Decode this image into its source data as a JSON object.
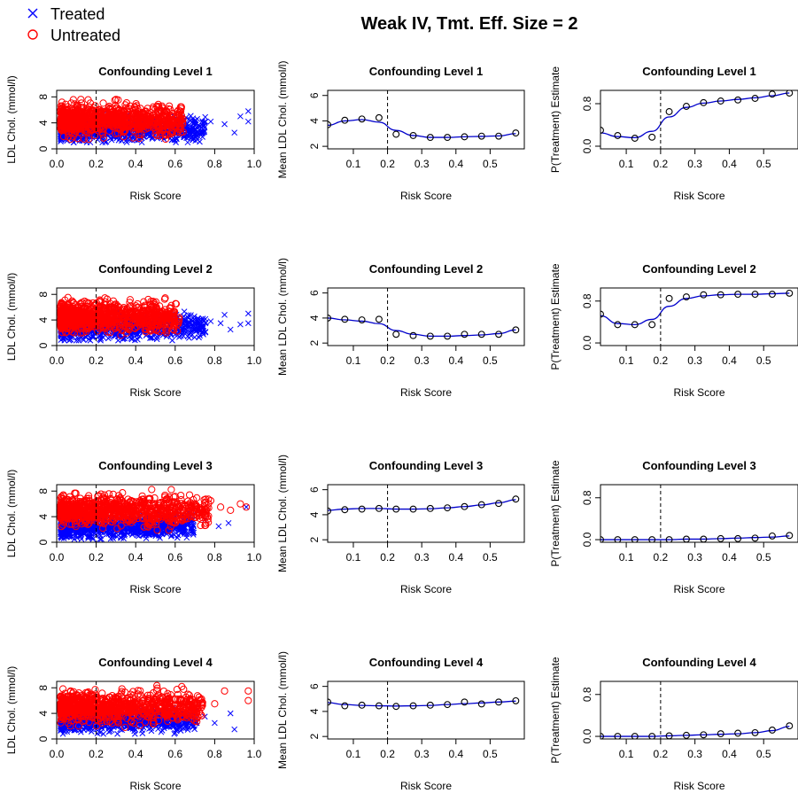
{
  "title": "Weak IV, Tmt. Eff. Size = 2",
  "legend": {
    "placement": "top-left",
    "items": [
      {
        "label": "Treated",
        "marker": "x",
        "color": "#0000ff"
      },
      {
        "label": "Untreated",
        "marker": "o",
        "color": "#ff0000"
      }
    ]
  },
  "colors": {
    "treated": "#0000ff",
    "untreated": "#ff0000",
    "curve": "#0000cc",
    "points": "#000000",
    "threshold": "#000000"
  },
  "chart_data": [
    {
      "type": "scatter",
      "row": 1,
      "col": 1,
      "title": "Confounding  Level 1",
      "xlabel": "Risk Score",
      "ylabel": "LDL Chol. (mmol/l)",
      "xlim": [
        0,
        1.0
      ],
      "ylim": [
        0,
        9
      ],
      "xticks": [
        "0.0",
        "0.2",
        "0.4",
        "0.6",
        "0.8",
        "1.0"
      ],
      "yticks": [
        "0",
        "4",
        "8"
      ],
      "threshold_x": 0.2,
      "treated_cluster": {
        "xmax": 0.98,
        "ymin": 1.0,
        "ymax": 6.5,
        "center": 3.0
      },
      "untreated_cluster": {
        "xmax": 0.62,
        "ymin": 1.5,
        "ymax": 8.5,
        "center": 4.5
      },
      "treated_outliers": [
        [
          0.78,
          4.2
        ],
        [
          0.85,
          3.8
        ],
        [
          0.9,
          2.5
        ],
        [
          0.93,
          5.0
        ],
        [
          0.97,
          5.8
        ],
        [
          0.97,
          4.2
        ]
      ],
      "untreated_outliers": []
    },
    {
      "type": "line",
      "row": 1,
      "col": 2,
      "title": "Confounding  Level 1",
      "xlabel": "Risk Score",
      "ylabel": "Mean LDL Chol. (mmol/l)",
      "xlim": [
        0.025,
        0.6
      ],
      "ylim": [
        1.8,
        6.4
      ],
      "xticks": [
        "0.1",
        "0.2",
        "0.3",
        "0.4",
        "0.5"
      ],
      "yticks": [
        "2",
        "4",
        "6"
      ],
      "threshold_x": 0.2,
      "points": {
        "x": [
          0.025,
          0.075,
          0.125,
          0.175,
          0.225,
          0.275,
          0.325,
          0.375,
          0.425,
          0.475,
          0.525,
          0.575
        ],
        "y": [
          3.7,
          4.05,
          4.15,
          4.25,
          2.95,
          2.85,
          2.7,
          2.7,
          2.75,
          2.8,
          2.8,
          3.05
        ]
      },
      "curve": {
        "x": [
          0.025,
          0.075,
          0.125,
          0.175,
          0.225,
          0.275,
          0.325,
          0.375,
          0.425,
          0.475,
          0.525,
          0.575
        ],
        "y": [
          3.65,
          4.0,
          4.1,
          3.9,
          3.25,
          2.85,
          2.7,
          2.7,
          2.75,
          2.78,
          2.82,
          3.0
        ]
      }
    },
    {
      "type": "line",
      "row": 1,
      "col": 3,
      "title": "Confounding  Level 1",
      "xlabel": "Risk Score",
      "ylabel": "P(Treatment) Estimate",
      "xlim": [
        0.025,
        0.6
      ],
      "ylim": [
        -0.05,
        1.05
      ],
      "xticks": [
        "0.1",
        "0.2",
        "0.3",
        "0.4",
        "0.5"
      ],
      "yticks": [
        "0.0",
        "0.8"
      ],
      "threshold_x": 0.2,
      "points": {
        "x": [
          0.025,
          0.075,
          0.125,
          0.175,
          0.225,
          0.275,
          0.325,
          0.375,
          0.425,
          0.475,
          0.525,
          0.575
        ],
        "y": [
          0.3,
          0.2,
          0.15,
          0.17,
          0.65,
          0.75,
          0.82,
          0.85,
          0.87,
          0.9,
          0.98,
          1.0
        ]
      },
      "curve": {
        "x": [
          0.025,
          0.075,
          0.125,
          0.175,
          0.225,
          0.275,
          0.325,
          0.375,
          0.425,
          0.475,
          0.525,
          0.575
        ],
        "y": [
          0.25,
          0.18,
          0.16,
          0.28,
          0.55,
          0.73,
          0.81,
          0.85,
          0.88,
          0.91,
          0.95,
          1.0
        ]
      }
    },
    {
      "type": "scatter",
      "row": 2,
      "col": 1,
      "title": "Confounding  Level 2",
      "xlabel": "Risk Score",
      "ylabel": "LDL Chol. (mmol/l)",
      "xlim": [
        0,
        1.0
      ],
      "ylim": [
        0,
        9
      ],
      "xticks": [
        "0.0",
        "0.2",
        "0.4",
        "0.6",
        "0.8",
        "1.0"
      ],
      "yticks": [
        "0",
        "4",
        "8"
      ],
      "threshold_x": 0.2,
      "treated_cluster": {
        "xmax": 0.98,
        "ymin": 0.8,
        "ymax": 7.0,
        "center": 3.0
      },
      "untreated_cluster": {
        "xmax": 0.6,
        "ymin": 1.5,
        "ymax": 8.5,
        "center": 4.5
      },
      "treated_outliers": [
        [
          0.78,
          3.8
        ],
        [
          0.83,
          3.5
        ],
        [
          0.85,
          4.8
        ],
        [
          0.88,
          2.5
        ],
        [
          0.93,
          3.3
        ],
        [
          0.97,
          5.0
        ],
        [
          0.97,
          3.5
        ]
      ],
      "untreated_outliers": []
    },
    {
      "type": "line",
      "row": 2,
      "col": 2,
      "title": "Confounding  Level 2",
      "xlabel": "Risk Score",
      "ylabel": "Mean LDL Chol. (mmol/l)",
      "xlim": [
        0.025,
        0.6
      ],
      "ylim": [
        1.8,
        6.4
      ],
      "xticks": [
        "0.1",
        "0.2",
        "0.3",
        "0.4",
        "0.5"
      ],
      "yticks": [
        "2",
        "4",
        "6"
      ],
      "threshold_x": 0.2,
      "points": {
        "x": [
          0.025,
          0.075,
          0.125,
          0.175,
          0.225,
          0.275,
          0.325,
          0.375,
          0.425,
          0.475,
          0.525,
          0.575
        ],
        "y": [
          4.0,
          3.9,
          3.85,
          3.9,
          2.7,
          2.6,
          2.55,
          2.55,
          2.7,
          2.7,
          2.7,
          3.05
        ]
      },
      "curve": {
        "x": [
          0.025,
          0.075,
          0.125,
          0.175,
          0.225,
          0.275,
          0.325,
          0.375,
          0.425,
          0.475,
          0.525,
          0.575
        ],
        "y": [
          4.0,
          3.85,
          3.75,
          3.55,
          3.0,
          2.7,
          2.55,
          2.55,
          2.6,
          2.65,
          2.75,
          3.05
        ]
      }
    },
    {
      "type": "line",
      "row": 2,
      "col": 3,
      "title": "Confounding  Level 2",
      "xlabel": "Risk Score",
      "ylabel": "P(Treatment) Estimate",
      "xlim": [
        0.025,
        0.6
      ],
      "ylim": [
        -0.05,
        1.05
      ],
      "xticks": [
        "0.1",
        "0.2",
        "0.3",
        "0.4",
        "0.5"
      ],
      "yticks": [
        "0.0",
        "0.8"
      ],
      "threshold_x": 0.2,
      "points": {
        "x": [
          0.025,
          0.075,
          0.125,
          0.175,
          0.225,
          0.275,
          0.325,
          0.375,
          0.425,
          0.475,
          0.525,
          0.575
        ],
        "y": [
          0.55,
          0.35,
          0.35,
          0.35,
          0.85,
          0.88,
          0.92,
          0.92,
          0.93,
          0.93,
          0.93,
          0.95
        ]
      },
      "curve": {
        "x": [
          0.025,
          0.075,
          0.125,
          0.175,
          0.225,
          0.275,
          0.325,
          0.375,
          0.425,
          0.475,
          0.525,
          0.575
        ],
        "y": [
          0.52,
          0.37,
          0.35,
          0.45,
          0.7,
          0.85,
          0.9,
          0.92,
          0.93,
          0.93,
          0.94,
          0.95
        ]
      }
    },
    {
      "type": "scatter",
      "row": 3,
      "col": 1,
      "title": "Confounding  Level 3",
      "xlabel": "Risk Score",
      "ylabel": "LDL Chol. (mmol/l)",
      "xlim": [
        0,
        1.0
      ],
      "ylim": [
        0,
        9
      ],
      "xticks": [
        "0.0",
        "0.2",
        "0.4",
        "0.6",
        "0.8",
        "1.0"
      ],
      "yticks": [
        "0",
        "4",
        "8"
      ],
      "threshold_x": 0.2,
      "treated_cluster": {
        "xmax": 0.9,
        "ymin": 0.5,
        "ymax": 5.0,
        "center": 2.5
      },
      "untreated_cluster": {
        "xmax": 0.75,
        "ymin": 1.5,
        "ymax": 8.5,
        "center": 5.0
      },
      "treated_outliers": [
        [
          0.75,
          3.5
        ],
        [
          0.82,
          2.5
        ],
        [
          0.87,
          3.0
        ],
        [
          0.96,
          5.5
        ]
      ],
      "untreated_outliers": [
        [
          0.78,
          6.5
        ],
        [
          0.83,
          5.5
        ],
        [
          0.88,
          5.0
        ],
        [
          0.93,
          6.0
        ],
        [
          0.96,
          5.5
        ]
      ]
    },
    {
      "type": "line",
      "row": 3,
      "col": 2,
      "title": "Confounding  Level 3",
      "xlabel": "Risk Score",
      "ylabel": "Mean LDL Chol. (mmol/l)",
      "xlim": [
        0.025,
        0.6
      ],
      "ylim": [
        1.8,
        6.4
      ],
      "xticks": [
        "0.1",
        "0.2",
        "0.3",
        "0.4",
        "0.5"
      ],
      "yticks": [
        "2",
        "4",
        "6"
      ],
      "threshold_x": 0.2,
      "points": {
        "x": [
          0.025,
          0.075,
          0.125,
          0.175,
          0.225,
          0.275,
          0.325,
          0.375,
          0.425,
          0.475,
          0.525,
          0.575
        ],
        "y": [
          4.3,
          4.4,
          4.45,
          4.5,
          4.45,
          4.45,
          4.5,
          4.55,
          4.65,
          4.8,
          4.9,
          5.25
        ]
      },
      "curve": {
        "x": [
          0.025,
          0.075,
          0.125,
          0.175,
          0.225,
          0.275,
          0.325,
          0.375,
          0.425,
          0.475,
          0.525,
          0.575
        ],
        "y": [
          4.35,
          4.45,
          4.5,
          4.5,
          4.45,
          4.45,
          4.48,
          4.55,
          4.65,
          4.78,
          4.95,
          5.2
        ]
      }
    },
    {
      "type": "line",
      "row": 3,
      "col": 3,
      "title": "Confounding  Level 3",
      "xlabel": "Risk Score",
      "ylabel": "P(Treatment) Estimate",
      "xlim": [
        0.025,
        0.6
      ],
      "ylim": [
        -0.05,
        1.05
      ],
      "xticks": [
        "0.1",
        "0.2",
        "0.3",
        "0.4",
        "0.5"
      ],
      "yticks": [
        "0.0",
        "0.8"
      ],
      "threshold_x": 0.2,
      "points": {
        "x": [
          0.025,
          0.075,
          0.125,
          0.175,
          0.225,
          0.275,
          0.325,
          0.375,
          0.425,
          0.475,
          0.525,
          0.575
        ],
        "y": [
          0.0,
          0.0,
          0.0,
          0.0,
          0.0,
          0.01,
          0.01,
          0.02,
          0.02,
          0.03,
          0.07,
          0.08
        ]
      },
      "curve": {
        "x": [
          0.025,
          0.075,
          0.125,
          0.175,
          0.225,
          0.275,
          0.325,
          0.375,
          0.425,
          0.475,
          0.525,
          0.575
        ],
        "y": [
          0.0,
          0.0,
          0.0,
          0.0,
          0.0,
          0.01,
          0.01,
          0.02,
          0.03,
          0.04,
          0.05,
          0.07
        ]
      }
    },
    {
      "type": "scatter",
      "row": 4,
      "col": 1,
      "title": "Confounding  Level 4",
      "xlabel": "Risk Score",
      "ylabel": "LDL Chol. (mmol/l)",
      "xlim": [
        0,
        1.0
      ],
      "ylim": [
        0,
        9
      ],
      "xticks": [
        "0.0",
        "0.2",
        "0.4",
        "0.6",
        "0.8",
        "1.0"
      ],
      "yticks": [
        "0",
        "4",
        "8"
      ],
      "threshold_x": 0.2,
      "treated_cluster": {
        "xmax": 0.92,
        "ymin": 0.8,
        "ymax": 5.5,
        "center": 3.0
      },
      "untreated_cluster": {
        "xmax": 0.72,
        "ymin": 1.5,
        "ymax": 8.5,
        "center": 5.0
      },
      "treated_outliers": [
        [
          0.75,
          3.5
        ],
        [
          0.8,
          2.5
        ],
        [
          0.9,
          1.5
        ],
        [
          0.88,
          4.0
        ]
      ],
      "untreated_outliers": [
        [
          0.8,
          5.5
        ],
        [
          0.85,
          7.5
        ],
        [
          0.97,
          7.5
        ],
        [
          0.97,
          6.0
        ]
      ]
    },
    {
      "type": "line",
      "row": 4,
      "col": 2,
      "title": "Confounding  Level 4",
      "xlabel": "Risk Score",
      "ylabel": "Mean LDL Chol. (mmol/l)",
      "xlim": [
        0.025,
        0.6
      ],
      "ylim": [
        1.8,
        6.4
      ],
      "xticks": [
        "0.1",
        "0.2",
        "0.3",
        "0.4",
        "0.5"
      ],
      "yticks": [
        "2",
        "4",
        "6"
      ],
      "threshold_x": 0.2,
      "points": {
        "x": [
          0.025,
          0.075,
          0.125,
          0.175,
          0.225,
          0.275,
          0.325,
          0.375,
          0.425,
          0.475,
          0.525,
          0.575
        ],
        "y": [
          4.75,
          4.45,
          4.5,
          4.45,
          4.4,
          4.45,
          4.5,
          4.55,
          4.75,
          4.6,
          4.75,
          4.85
        ]
      },
      "curve": {
        "x": [
          0.025,
          0.075,
          0.125,
          0.175,
          0.225,
          0.275,
          0.325,
          0.375,
          0.425,
          0.475,
          0.525,
          0.575
        ],
        "y": [
          4.7,
          4.55,
          4.48,
          4.45,
          4.43,
          4.45,
          4.48,
          4.55,
          4.62,
          4.68,
          4.75,
          4.82
        ]
      }
    },
    {
      "type": "line",
      "row": 4,
      "col": 3,
      "title": "Confounding  Level 4",
      "xlabel": "Risk Score",
      "ylabel": "P(Treatment) Estimate",
      "xlim": [
        0.025,
        0.6
      ],
      "ylim": [
        -0.05,
        1.05
      ],
      "xticks": [
        "0.1",
        "0.2",
        "0.3",
        "0.4",
        "0.5"
      ],
      "yticks": [
        "0.0",
        "0.8"
      ],
      "threshold_x": 0.2,
      "points": {
        "x": [
          0.025,
          0.075,
          0.125,
          0.175,
          0.225,
          0.275,
          0.325,
          0.375,
          0.425,
          0.475,
          0.525,
          0.575
        ],
        "y": [
          0.0,
          0.0,
          0.0,
          0.0,
          0.01,
          0.02,
          0.03,
          0.05,
          0.06,
          0.07,
          0.12,
          0.2
        ]
      },
      "curve": {
        "x": [
          0.025,
          0.075,
          0.125,
          0.175,
          0.225,
          0.275,
          0.325,
          0.375,
          0.425,
          0.475,
          0.525,
          0.575
        ],
        "y": [
          0.0,
          0.0,
          0.0,
          0.0,
          0.01,
          0.02,
          0.03,
          0.04,
          0.05,
          0.07,
          0.11,
          0.19
        ]
      }
    }
  ]
}
